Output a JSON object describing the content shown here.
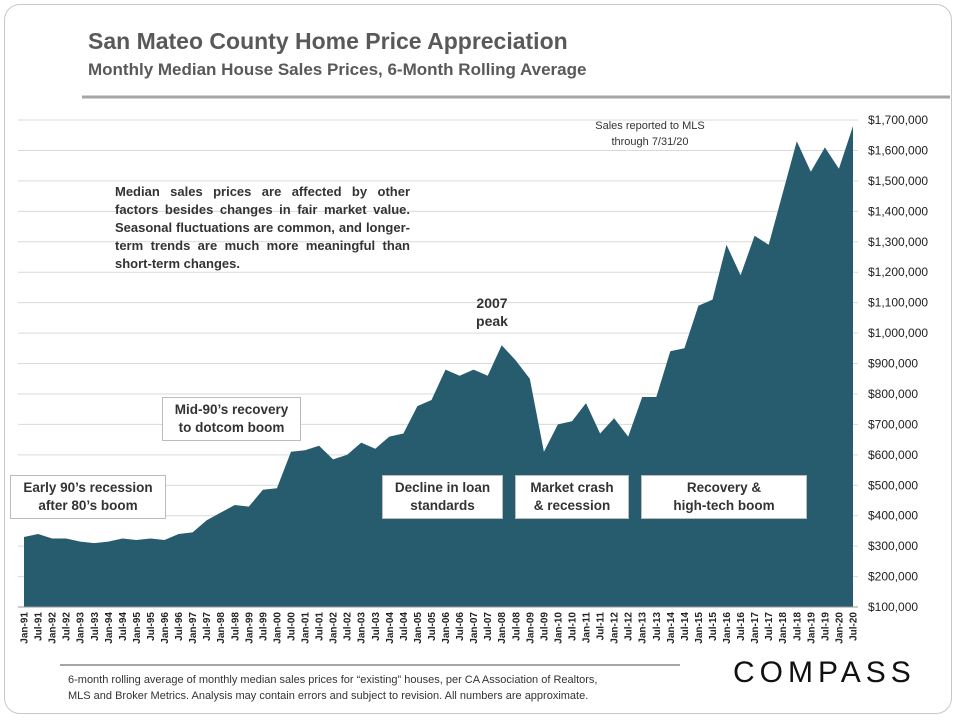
{
  "chart_data": {
    "type": "area",
    "title": "San Mateo County Home Price Appreciation",
    "subtitle": "Monthly Median House Sales Prices, 6-Month Rolling Average",
    "categories": [
      "Jan-91",
      "Jul-91",
      "Jan-92",
      "Jul-92",
      "Jan-93",
      "Jul-93",
      "Jan-94",
      "Jul-94",
      "Jan-95",
      "Jul-95",
      "Jan-96",
      "Jul-96",
      "Jan-97",
      "Jul-97",
      "Jan-98",
      "Jul-98",
      "Jan-99",
      "Jul-99",
      "Jan-00",
      "Jul-00",
      "Jan-01",
      "Jul-01",
      "Jan-02",
      "Jul-02",
      "Jan-03",
      "Jul-03",
      "Jan-04",
      "Jul-04",
      "Jan-05",
      "Jul-05",
      "Jan-06",
      "Jul-06",
      "Jan-07",
      "Jul-07",
      "Jan-08",
      "Jul-08",
      "Jan-09",
      "Jul-09",
      "Jan-10",
      "Jul-10",
      "Jan-11",
      "Jul-11",
      "Jan-12",
      "Jul-12",
      "Jan-13",
      "Jul-13",
      "Jan-14",
      "Jul-14",
      "Jan-15",
      "Jul-15",
      "Jan-16",
      "Jul-16",
      "Jan-17",
      "Jul-17",
      "Jan-18",
      "Jul-18",
      "Jan-19",
      "Jul-19",
      "Jan-20",
      "Jul-20"
    ],
    "values": [
      330000,
      340000,
      325000,
      325000,
      315000,
      310000,
      315000,
      325000,
      320000,
      325000,
      320000,
      340000,
      345000,
      385000,
      410000,
      435000,
      430000,
      485000,
      490000,
      610000,
      615000,
      630000,
      585000,
      600000,
      640000,
      620000,
      660000,
      670000,
      760000,
      780000,
      880000,
      860000,
      880000,
      860000,
      960000,
      910000,
      850000,
      610000,
      700000,
      710000,
      770000,
      670000,
      720000,
      660000,
      790000,
      790000,
      940000,
      950000,
      1090000,
      1110000,
      1290000,
      1190000,
      1320000,
      1290000,
      1460000,
      1630000,
      1530000,
      1610000,
      1540000,
      1680000
    ],
    "color": "#265c6e",
    "ylim": [
      100000,
      1700000
    ],
    "yticks": [
      {
        "value": 100000,
        "label": "$100,000"
      },
      {
        "value": 200000,
        "label": "$200,000"
      },
      {
        "value": 300000,
        "label": "$300,000"
      },
      {
        "value": 400000,
        "label": "$400,000"
      },
      {
        "value": 500000,
        "label": "$500,000"
      },
      {
        "value": 600000,
        "label": "$600,000"
      },
      {
        "value": 700000,
        "label": "$700,000"
      },
      {
        "value": 800000,
        "label": "$800,000"
      },
      {
        "value": 900000,
        "label": "$900,000"
      },
      {
        "value": 1000000,
        "label": "$1,000,000"
      },
      {
        "value": 1100000,
        "label": "$1,100,000"
      },
      {
        "value": 1200000,
        "label": "$1,200,000"
      },
      {
        "value": 1300000,
        "label": "$1,300,000"
      },
      {
        "value": 1400000,
        "label": "$1,400,000"
      },
      {
        "value": 1500000,
        "label": "$1,500,000"
      },
      {
        "value": 1600000,
        "label": "$1,600,000"
      },
      {
        "value": 1700000,
        "label": "$1,700,000"
      }
    ],
    "grid": true,
    "annotations": [
      "Median sales prices are affected by other factors besides changes in fair market value. Seasonal fluctuations are common, and longer-term trends are much more meaningful than short-term changes.",
      "2007\npeak",
      "Sales reported to MLS\nthrough 7/31/20",
      "Mid-90’s recovery\nto dotcom boom",
      "Early 90’s recession\nafter 80’s boom",
      "Decline in loan\nstandards",
      "Market crash\n& recession",
      "Recovery &\nhigh-tech boom"
    ],
    "note": "6-month rolling average of monthly median sales prices for “existing” houses, per CA Association of Realtors,\nMLS and Broker Metrics.  Analysis may contain errors and subject to revision. All numbers are approximate.",
    "logo": "COMPASS"
  }
}
